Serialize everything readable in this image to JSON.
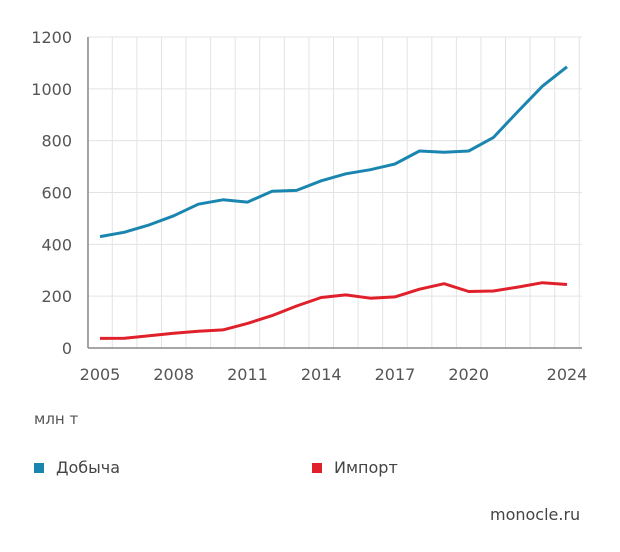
{
  "chart_data": {
    "type": "line",
    "title": "",
    "ylabel": "млн т",
    "xlabel": "",
    "x": [
      2005,
      2006,
      2007,
      2008,
      2009,
      2010,
      2011,
      2012,
      2013,
      2014,
      2015,
      2016,
      2017,
      2018,
      2019,
      2020,
      2021,
      2022,
      2023,
      2024
    ],
    "xticks": [
      "2005",
      "2008",
      "2011",
      "2014",
      "2017",
      "2020",
      "2024"
    ],
    "yticks": [
      "0",
      "200",
      "400",
      "600",
      "800",
      "1000",
      "1200"
    ],
    "ylim": [
      0,
      1200
    ],
    "grid": true,
    "legend_position": "bottom",
    "series": [
      {
        "name": "Добыча",
        "color": "#1a86b0",
        "values": [
          430,
          447,
          475,
          510,
          555,
          572,
          563,
          605,
          608,
          645,
          672,
          688,
          710,
          760,
          755,
          760,
          812,
          912,
          1010,
          1085
        ]
      },
      {
        "name": "Импорт",
        "color": "#e0202a",
        "values": [
          37,
          38,
          47,
          57,
          65,
          70,
          95,
          125,
          162,
          195,
          205,
          192,
          197,
          227,
          248,
          218,
          220,
          235,
          252,
          245
        ]
      }
    ]
  },
  "source": "monocle.ru"
}
